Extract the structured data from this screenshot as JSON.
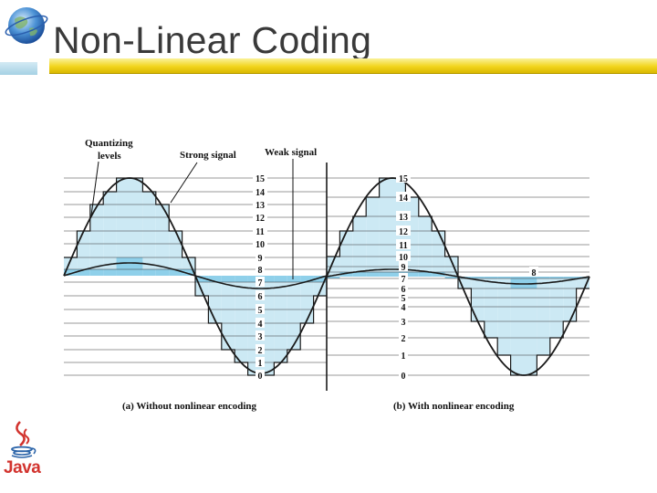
{
  "slide": {
    "title": "Non-Linear Coding"
  },
  "logos": {
    "globe": "globe-logo",
    "java": "Java"
  },
  "figure": {
    "label_quantizing_line1": "Quantizing",
    "label_quantizing_line2": "levels",
    "label_strong": "Strong signal",
    "label_weak": "Weak signal",
    "caption_a": "(a) Without nonlinear encoding",
    "caption_b": "(b) With nonlinear encoding",
    "levels": [
      "0",
      "1",
      "2",
      "3",
      "4",
      "5",
      "6",
      "7",
      "8",
      "9",
      "10",
      "11",
      "12",
      "13",
      "14",
      "15"
    ],
    "colors": {
      "strong_fill": "#cce9f4",
      "weak_fill": "#8fd0ea",
      "line": "#1a1a1a",
      "title_bar": "#f2d51d"
    }
  }
}
